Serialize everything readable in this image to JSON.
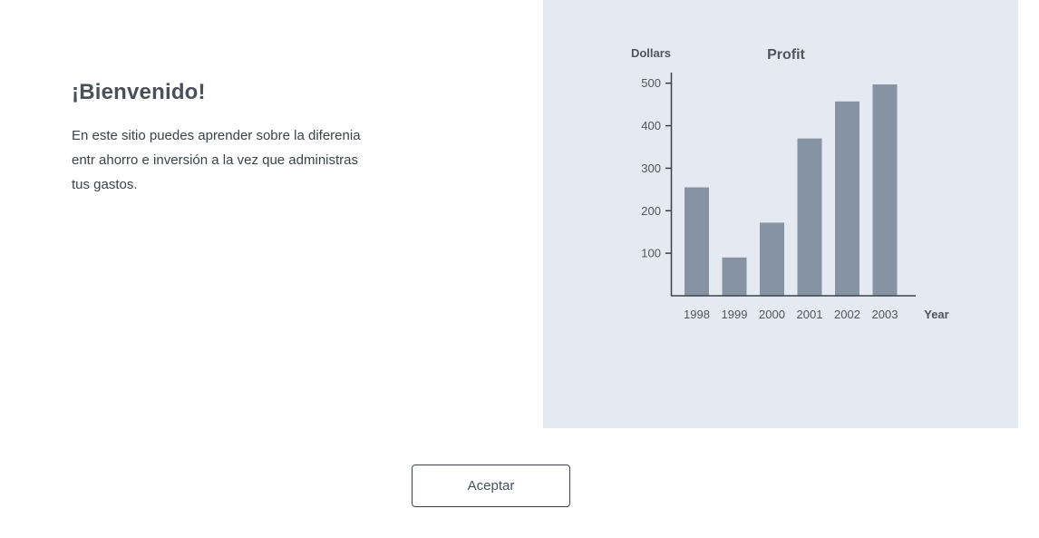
{
  "welcome": {
    "title": "¡Bienvenido!",
    "text_lines": [
      "En este sitio puedes  aprender sobre la diferenia",
      "entr ahorro e inversión a la vez que administras",
      "tus gastos."
    ]
  },
  "button": {
    "label": "Aceptar"
  },
  "colors": {
    "panel_background": "#e5e9f1",
    "bar_fill": "#8593a5",
    "axis": "#3d424a",
    "text": "#4a5059"
  },
  "chart_data": {
    "type": "bar",
    "title": "Profit",
    "xlabel": "Year",
    "ylabel": "Dollars",
    "categories": [
      "1998",
      "1999",
      "2000",
      "2001",
      "2002",
      "2003"
    ],
    "values": [
      255,
      90,
      172,
      370,
      457,
      497
    ],
    "yticks": [
      100,
      200,
      300,
      400,
      500
    ],
    "ylim": [
      0,
      530
    ],
    "grid": false
  }
}
